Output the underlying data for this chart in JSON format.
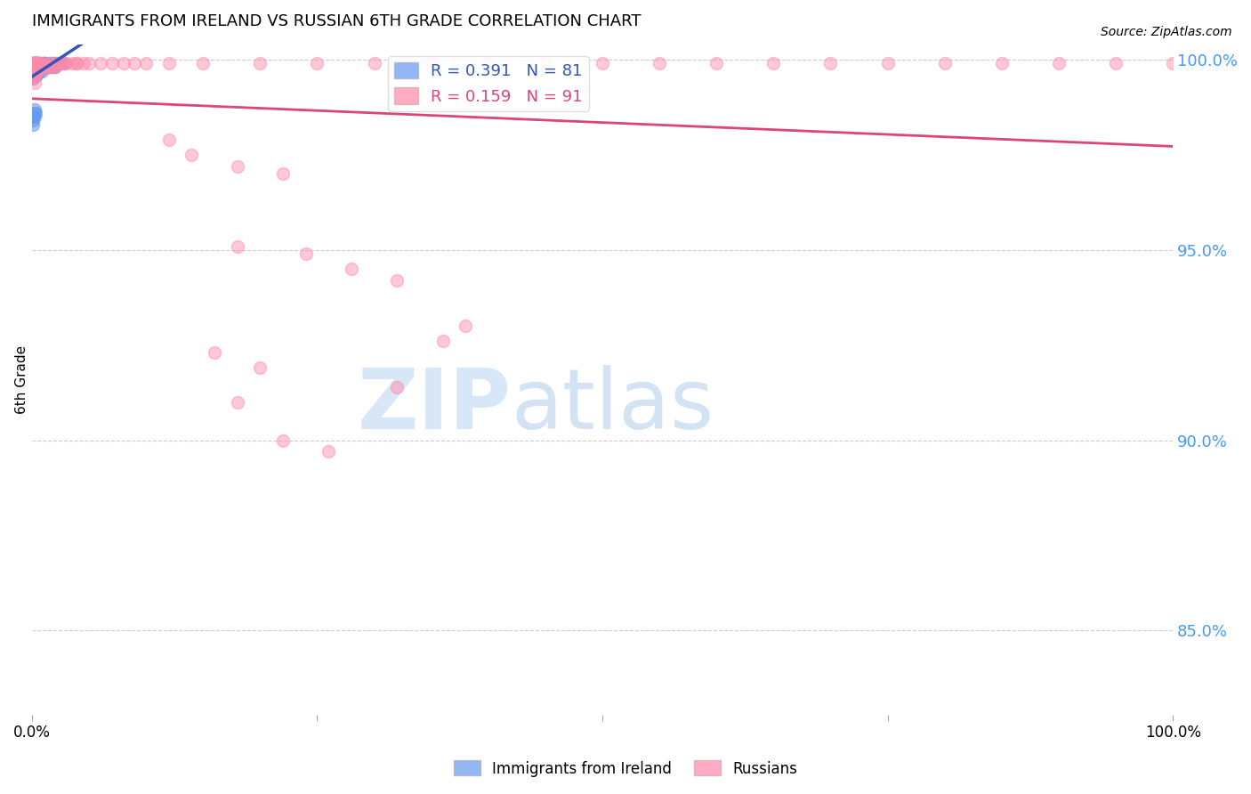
{
  "title": "IMMIGRANTS FROM IRELAND VS RUSSIAN 6TH GRADE CORRELATION CHART",
  "source": "Source: ZipAtlas.com",
  "ylabel": "6th Grade",
  "ytick_labels": [
    "100.0%",
    "95.0%",
    "90.0%",
    "85.0%"
  ],
  "ytick_values": [
    1.0,
    0.95,
    0.9,
    0.85
  ],
  "x_min": 0.0,
  "x_max": 1.0,
  "y_min": 0.828,
  "y_max": 1.004,
  "legend_ireland_R": "0.391",
  "legend_ireland_N": "81",
  "legend_russian_R": "0.159",
  "legend_russian_N": "91",
  "color_ireland": "#6699ee",
  "color_russian": "#ff88aa",
  "color_trendline_ireland": "#3355bb",
  "color_trendline_russian": "#dd4477",
  "color_ytick": "#4499ff",
  "color_grid": "#cccccc",
  "watermark_zip": "ZIP",
  "watermark_atlas": "atlas",
  "ireland_x": [
    0.001,
    0.001,
    0.001,
    0.001,
    0.001,
    0.001,
    0.001,
    0.001,
    0.001,
    0.001,
    0.002,
    0.002,
    0.002,
    0.002,
    0.002,
    0.002,
    0.002,
    0.002,
    0.003,
    0.003,
    0.003,
    0.003,
    0.003,
    0.003,
    0.004,
    0.004,
    0.004,
    0.004,
    0.004,
    0.005,
    0.005,
    0.005,
    0.005,
    0.006,
    0.006,
    0.006,
    0.007,
    0.007,
    0.008,
    0.008,
    0.009,
    0.01,
    0.01,
    0.011,
    0.012,
    0.013,
    0.015,
    0.015,
    0.017,
    0.02,
    0.022,
    0.025,
    0.028,
    0.001,
    0.001,
    0.001,
    0.002,
    0.002,
    0.003,
    0.003,
    0.004,
    0.004,
    0.005,
    0.005,
    0.006,
    0.007,
    0.008,
    0.009,
    0.01,
    0.012,
    0.014,
    0.016,
    0.018,
    0.02,
    0.001,
    0.002,
    0.001,
    0.002,
    0.003,
    0.001,
    0.002
  ],
  "ireland_y": [
    0.999,
    0.999,
    0.999,
    0.998,
    0.998,
    0.998,
    0.997,
    0.997,
    0.996,
    0.995,
    0.999,
    0.999,
    0.998,
    0.998,
    0.997,
    0.997,
    0.996,
    0.996,
    0.999,
    0.999,
    0.998,
    0.998,
    0.997,
    0.997,
    0.999,
    0.999,
    0.998,
    0.997,
    0.996,
    0.999,
    0.998,
    0.998,
    0.997,
    0.999,
    0.998,
    0.997,
    0.999,
    0.998,
    0.999,
    0.998,
    0.998,
    0.999,
    0.998,
    0.999,
    0.999,
    0.998,
    0.999,
    0.998,
    0.999,
    0.999,
    0.999,
    0.999,
    0.999,
    0.998,
    0.997,
    0.996,
    0.997,
    0.996,
    0.997,
    0.996,
    0.997,
    0.996,
    0.998,
    0.997,
    0.998,
    0.998,
    0.998,
    0.997,
    0.998,
    0.998,
    0.998,
    0.998,
    0.998,
    0.998,
    0.984,
    0.986,
    0.985,
    0.987,
    0.986,
    0.983,
    0.985
  ],
  "russian_cluster_x": [
    0.001,
    0.001,
    0.001,
    0.002,
    0.002,
    0.002,
    0.002,
    0.003,
    0.003,
    0.003,
    0.004,
    0.004,
    0.004,
    0.005,
    0.005,
    0.005,
    0.006,
    0.006,
    0.007,
    0.007,
    0.008,
    0.009,
    0.01,
    0.01,
    0.012,
    0.013,
    0.015,
    0.015,
    0.017,
    0.018,
    0.02,
    0.022,
    0.025,
    0.028,
    0.03,
    0.035,
    0.038,
    0.04,
    0.045,
    0.05,
    0.06,
    0.07,
    0.08,
    0.09,
    0.1,
    0.12,
    0.15,
    0.2,
    0.25,
    0.3,
    0.35,
    0.4,
    0.45,
    0.5,
    0.55,
    0.6,
    0.65,
    0.7,
    0.75,
    0.8,
    0.85,
    0.9,
    0.95,
    1.0,
    0.001,
    0.001,
    0.002,
    0.002,
    0.003,
    0.003,
    0.004,
    0.005,
    0.001,
    0.001,
    0.002
  ],
  "russian_cluster_y": [
    0.999,
    0.999,
    0.998,
    0.999,
    0.999,
    0.998,
    0.998,
    0.999,
    0.998,
    0.997,
    0.999,
    0.998,
    0.997,
    0.999,
    0.998,
    0.997,
    0.999,
    0.998,
    0.999,
    0.998,
    0.998,
    0.998,
    0.999,
    0.998,
    0.998,
    0.998,
    0.999,
    0.998,
    0.999,
    0.998,
    0.998,
    0.999,
    0.999,
    0.999,
    0.999,
    0.999,
    0.999,
    0.999,
    0.999,
    0.999,
    0.999,
    0.999,
    0.999,
    0.999,
    0.999,
    0.999,
    0.999,
    0.999,
    0.999,
    0.999,
    0.999,
    0.999,
    0.999,
    0.999,
    0.999,
    0.999,
    0.999,
    0.999,
    0.999,
    0.999,
    0.999,
    0.999,
    0.999,
    0.999,
    0.998,
    0.997,
    0.997,
    0.996,
    0.997,
    0.996,
    0.997,
    0.997,
    0.996,
    0.995,
    0.994
  ],
  "russian_outlier_x": [
    0.12,
    0.14,
    0.18,
    0.22,
    0.18,
    0.24,
    0.28,
    0.32,
    0.38,
    0.36,
    0.16,
    0.2,
    0.32,
    0.18,
    0.22,
    0.26
  ],
  "russian_outlier_y": [
    0.979,
    0.975,
    0.972,
    0.97,
    0.951,
    0.949,
    0.945,
    0.942,
    0.93,
    0.926,
    0.923,
    0.919,
    0.914,
    0.91,
    0.9,
    0.897
  ],
  "marker_size": 100
}
